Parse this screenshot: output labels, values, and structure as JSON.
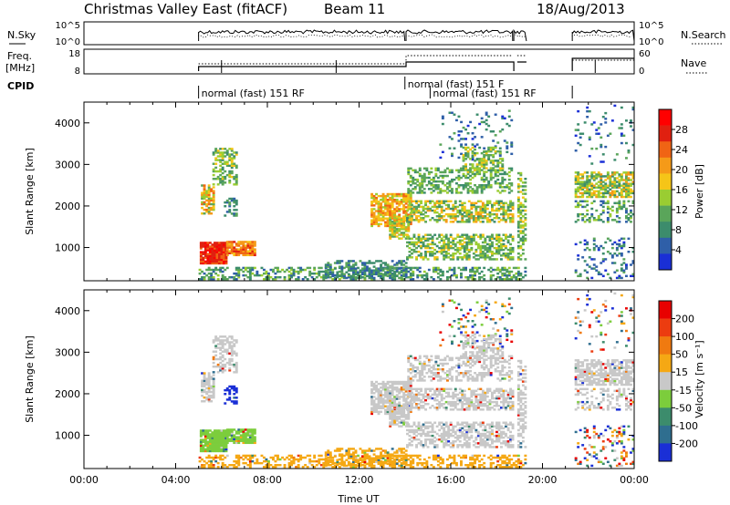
{
  "header": {
    "title": "Christmas Valley East (fitACF)",
    "beam": "Beam 11",
    "date": "18/Aug/2013"
  },
  "chart_data": [
    {
      "type": "line",
      "name": "nsky_nsearch",
      "left_label": "N.Sky",
      "right_label": "N.Search",
      "left_ticks": [
        "10^5",
        "10^0"
      ],
      "right_ticks": [
        "10^5",
        "10^0"
      ]
    },
    {
      "type": "line",
      "name": "freq_nave",
      "left_label_line1": "Freq.",
      "left_label_line2": "[MHz]",
      "left_ticks": [
        "18",
        "8"
      ],
      "right_label": "Nave",
      "right_ticks": [
        "60",
        "0"
      ]
    },
    {
      "type": "table",
      "name": "cpid",
      "label": "CPID",
      "segments": [
        {
          "start_hr": 5.0,
          "end_hr": 14.0,
          "text": "normal (fast) 151 RF",
          "row": 2
        },
        {
          "start_hr": 14.0,
          "end_hr": 18.9,
          "text": "normal (fast)  151  F",
          "row": 1
        },
        {
          "start_hr": 15.1,
          "end_hr": 21.3,
          "text": "normal (fast)  151  RF",
          "row": 2
        }
      ]
    },
    {
      "type": "heatmap",
      "name": "power",
      "ylabel": "Slant Range [km]",
      "ylim": [
        200,
        4500
      ],
      "yticks": [
        1000,
        2000,
        3000,
        4000
      ],
      "colorbar_label": "Power [dB]",
      "colorbar_ticks": [
        "28",
        "24",
        "20",
        "16",
        "12",
        "8",
        "4"
      ],
      "colors": [
        "#1a2fd6",
        "#2f5fa8",
        "#3c8c6c",
        "#5aa55a",
        "#9acd32",
        "#f5c518",
        "#f59a18",
        "#f06414",
        "#e02010",
        "#ff0000"
      ]
    },
    {
      "type": "heatmap",
      "name": "velocity",
      "ylabel": "Slant Range [km]",
      "ylim": [
        200,
        4500
      ],
      "yticks": [
        1000,
        2000,
        3000,
        4000
      ],
      "xlabel": "Time UT",
      "xticks": [
        "00:00",
        "04:00",
        "08:00",
        "12:00",
        "16:00",
        "20:00",
        "00:00"
      ],
      "xlim_hours": [
        0,
        24
      ],
      "colorbar_label": "Velocity [m s⁻¹]",
      "colorbar_ticks": [
        "200",
        "100",
        "50",
        "15",
        "-15",
        "-50",
        "-100",
        "-200"
      ],
      "colors": [
        "#1a2fd6",
        "#2f6e8f",
        "#3c8c6c",
        "#7ccd3c",
        "#c8c8c8",
        "#f5a814",
        "#f07a10",
        "#ec3c10",
        "#e80000"
      ]
    }
  ]
}
